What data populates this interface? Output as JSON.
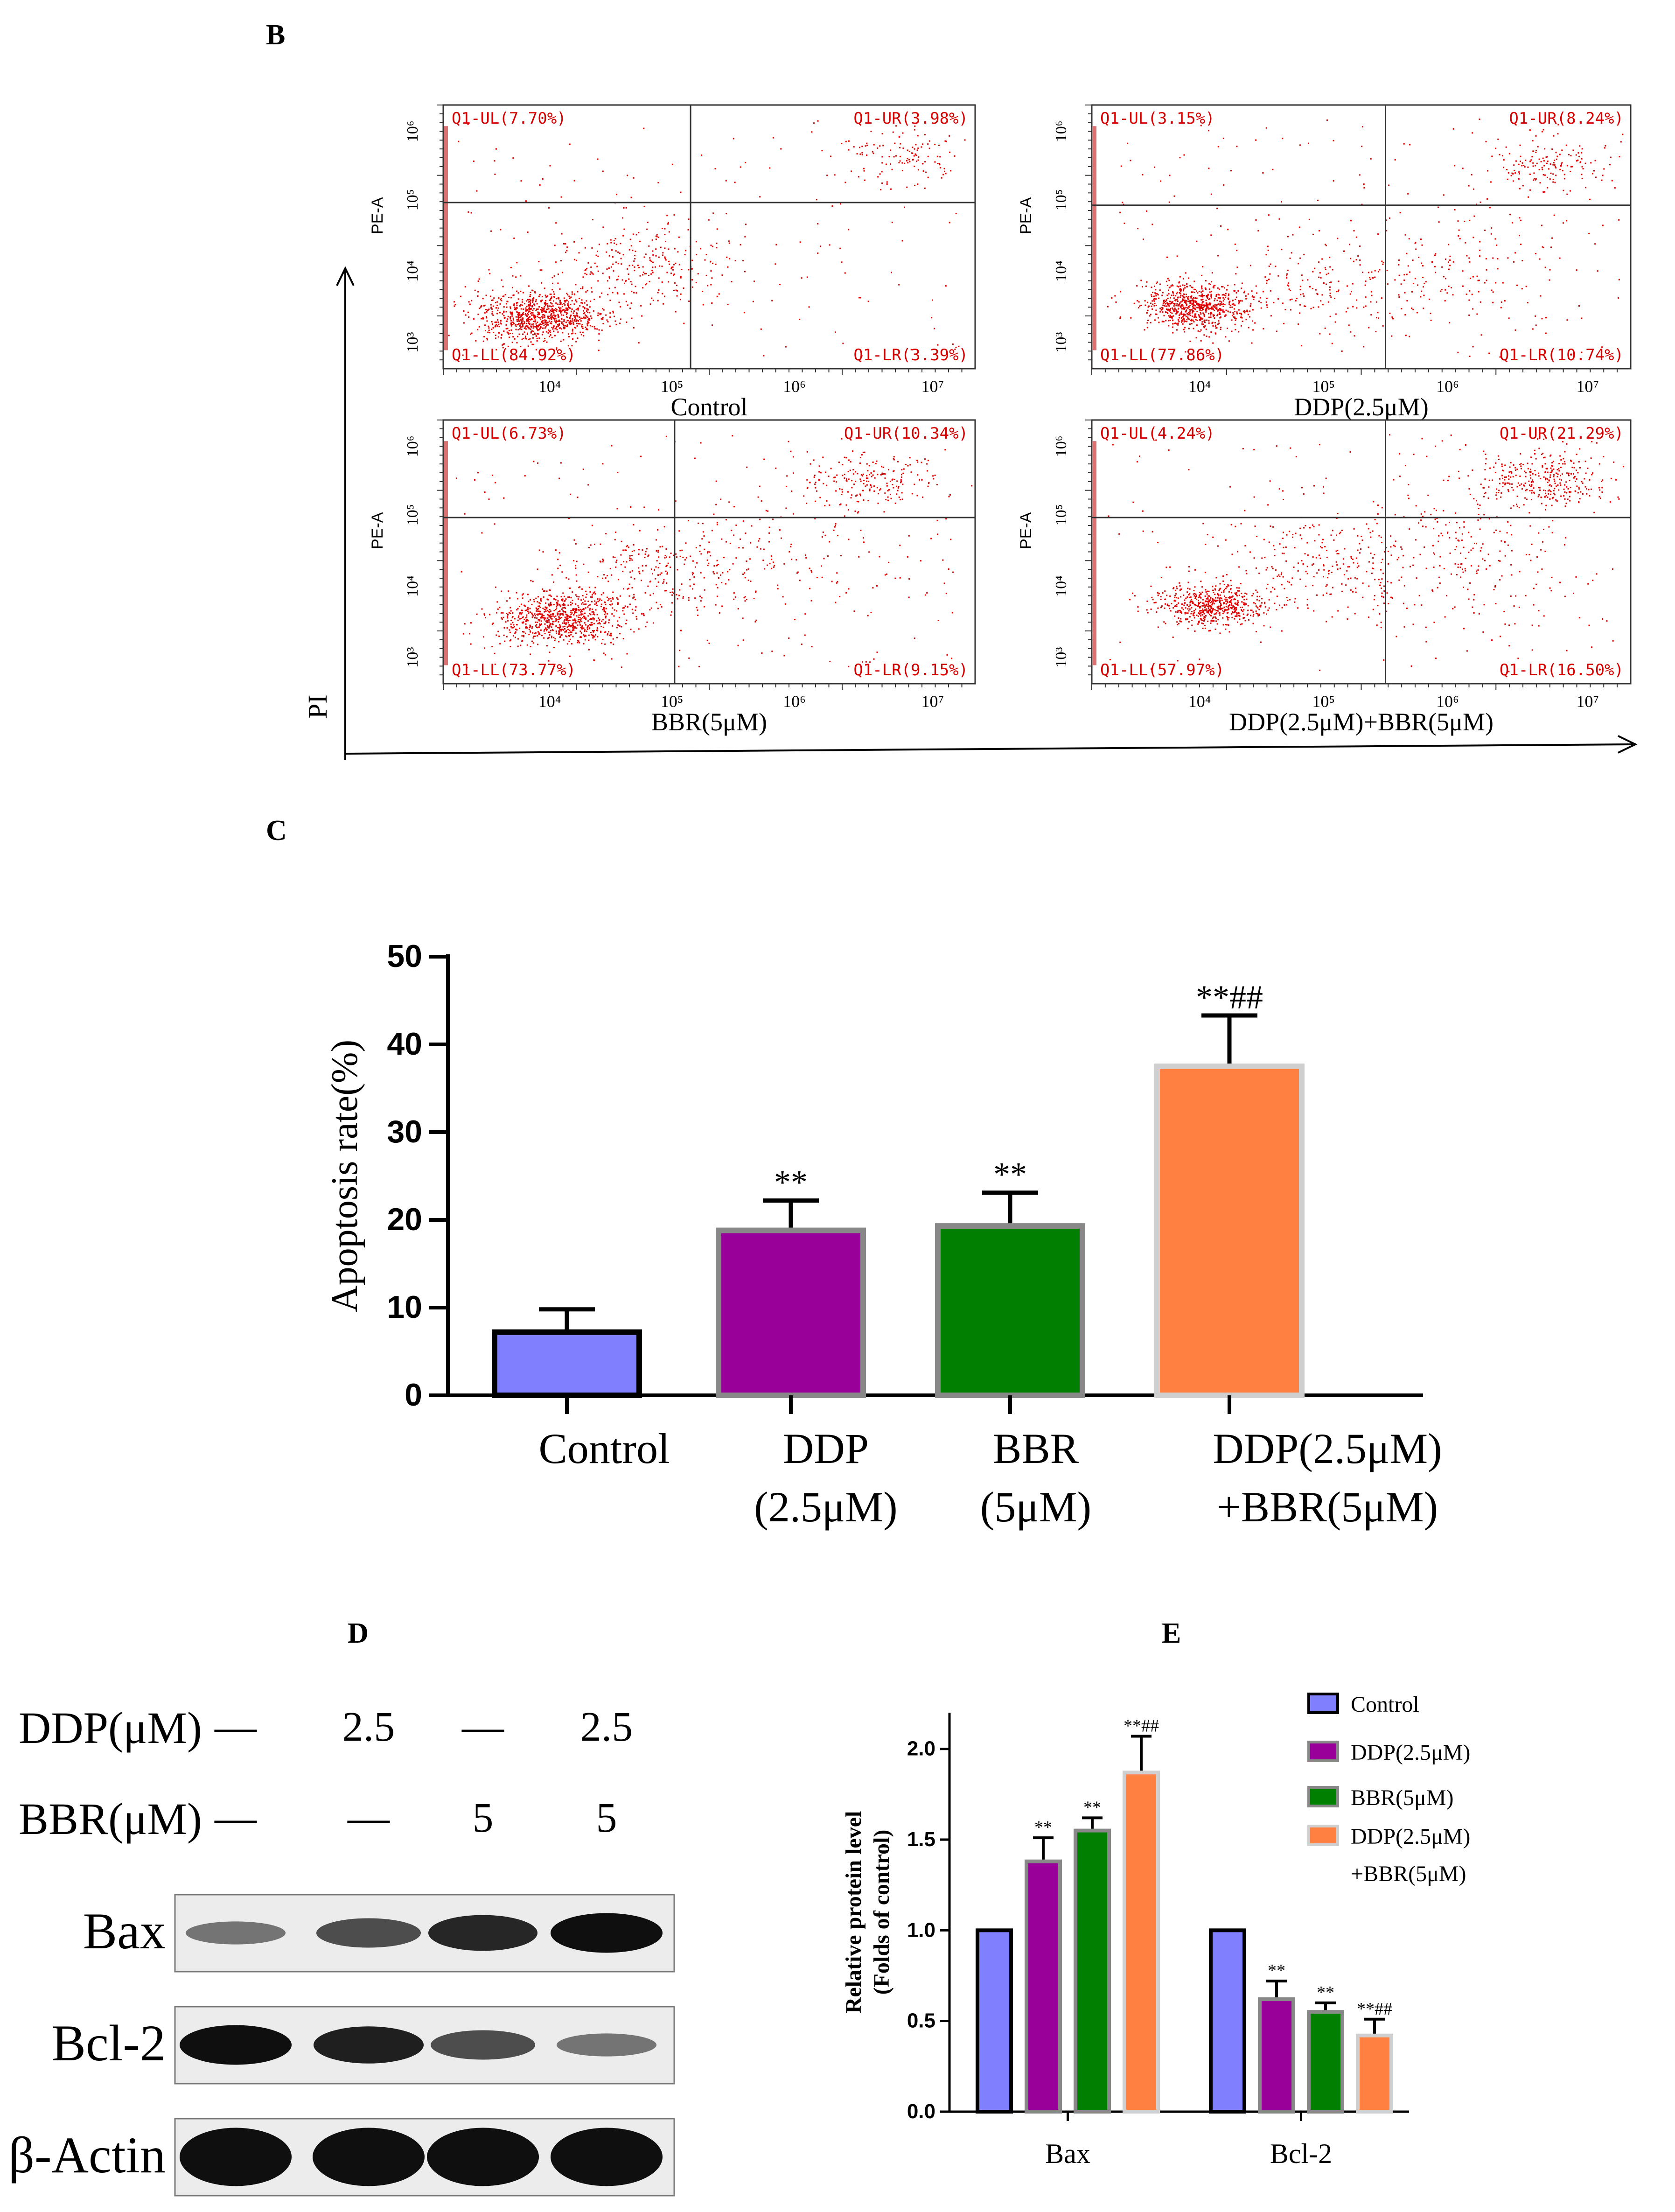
{
  "panels": {
    "B": "B",
    "C": "C",
    "D": "D",
    "E": "E"
  },
  "flow": {
    "x_axis_label": "PI",
    "y_axis_label": "PE-A",
    "x_ticks": [
      "10⁴",
      "10⁵",
      "10⁶",
      "10⁷"
    ],
    "y_ticks": [
      "10³",
      "10⁴",
      "10⁵",
      "10⁶"
    ],
    "plots": [
      {
        "caption": "Control",
        "q": {
          "UL": "Q1-UL(7.70%)",
          "UR": "Q1-UR(3.98%)",
          "LL": "Q1-LL(84.92%)",
          "LR": "Q1-LR(3.39%)"
        }
      },
      {
        "caption": "DDP(2.5μM)",
        "q": {
          "UL": "Q1-UL(3.15%)",
          "UR": "Q1-UR(8.24%)",
          "LL": "Q1-LL(77.86%)",
          "LR": "Q1-LR(10.74%)"
        }
      },
      {
        "caption": "BBR(5μM)",
        "q": {
          "UL": "Q1-UL(6.73%)",
          "UR": "Q1-UR(10.34%)",
          "LL": "Q1-LL(73.77%)",
          "LR": "Q1-LR(9.15%)"
        }
      },
      {
        "caption": "DDP(2.5μM)+BBR(5μM)",
        "q": {
          "UL": "Q1-UL(4.24%)",
          "UR": "Q1-UR(21.29%)",
          "LL": "Q1-LL(57.97%)",
          "LR": "Q1-LR(16.50%)"
        }
      }
    ]
  },
  "chart_data": [
    {
      "type": "bar",
      "panel": "C",
      "ylabel": "Apoptosis rate(%)",
      "ylim": [
        0,
        50
      ],
      "yticks": [
        0,
        10,
        20,
        30,
        40,
        50
      ],
      "categories": [
        {
          "line1": "Control",
          "line2": ""
        },
        {
          "line1": "DDP",
          "line2": "(2.5μM)"
        },
        {
          "line1": "BBR",
          "line2": "(5μM)"
        },
        {
          "line1": "DDP(2.5μM)",
          "line2": "+BBR(5μM)"
        }
      ],
      "values": [
        7.2,
        18.8,
        19.3,
        37.5
      ],
      "errors": [
        2.6,
        3.4,
        3.8,
        5.8
      ],
      "annotations": [
        "",
        "**",
        "**",
        "**##"
      ],
      "colors": [
        "#8080ff",
        "#990099",
        "#007f00",
        "#ff8040"
      ]
    },
    {
      "type": "bar",
      "panel": "E",
      "ylabel_line1": "Relative protein level",
      "ylabel_line2": "(Folds of control)",
      "ylim": [
        0,
        2.2
      ],
      "yticks": [
        "0.0",
        "0.5",
        "1.0",
        "1.5",
        "2.0"
      ],
      "categories": [
        "Bax",
        "Bcl-2"
      ],
      "series": [
        {
          "name": "Control",
          "color": "#8080ff",
          "values": [
            1.0,
            1.0
          ],
          "errors": [
            0,
            0
          ],
          "annotations": [
            "",
            ""
          ]
        },
        {
          "name": "DDP(2.5μM)",
          "color": "#990099",
          "values": [
            1.38,
            0.62
          ],
          "errors": [
            0.13,
            0.1
          ],
          "annotations": [
            "**",
            "**"
          ]
        },
        {
          "name": "BBR(5μM)",
          "color": "#007f00",
          "values": [
            1.55,
            0.55
          ],
          "errors": [
            0.07,
            0.05
          ],
          "annotations": [
            "**",
            "**"
          ]
        },
        {
          "name": "DDP(2.5μM)\n+BBR(5μM)",
          "color": "#ff8040",
          "values": [
            1.87,
            0.42
          ],
          "errors": [
            0.2,
            0.09
          ],
          "annotations": [
            "**##",
            "**##"
          ]
        }
      ],
      "legend_lines": [
        [
          "Control"
        ],
        [
          "DDP(2.5μM)"
        ],
        [
          "BBR(5μM)"
        ],
        [
          "DDP(2.5μM)",
          "+BBR(5μM)"
        ]
      ]
    }
  ],
  "blot": {
    "ddp_label": "DDP(μM)",
    "bbr_label": "BBR(μM)",
    "ddp": [
      "—",
      "2.5",
      "—",
      "2.5"
    ],
    "bbr": [
      "—",
      "—",
      "5",
      "5"
    ],
    "rows": [
      {
        "label": "Bax",
        "intensity": [
          0.35,
          0.6,
          0.85,
          1.0
        ]
      },
      {
        "label": "Bcl-2",
        "intensity": [
          1.0,
          0.9,
          0.6,
          0.35
        ]
      },
      {
        "label": "β-Actin",
        "intensity": [
          1.0,
          1.0,
          1.0,
          1.0
        ]
      }
    ]
  }
}
